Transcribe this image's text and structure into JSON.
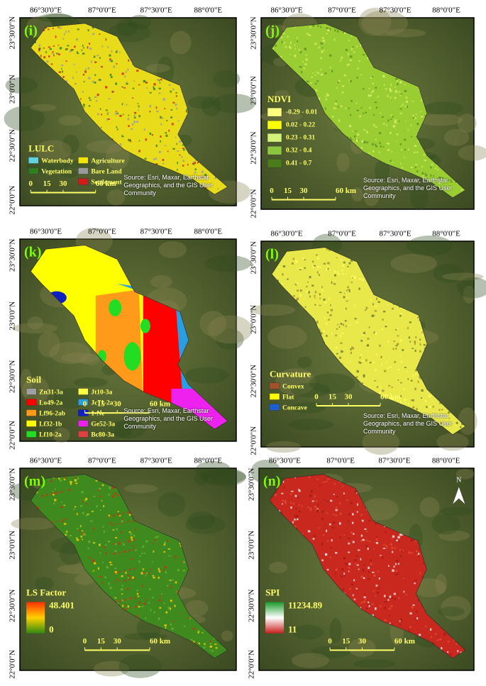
{
  "graticule": {
    "lon": [
      "86°30'0\"E",
      "87°0'0\"E",
      "87°30'0\"E",
      "88°0'0\"E"
    ],
    "lat": [
      "23°30'0\"N",
      "23°0'0\"N",
      "22°30'0\"N",
      "22°0'0\"N"
    ]
  },
  "scale": [
    "0",
    "15",
    "30",
    "60 km"
  ],
  "source": "Source: Esri, Maxar, Earthstar Geographics, and the GIS User Community",
  "north": "N",
  "panels": [
    {
      "label": "(i)",
      "legend_title": "LULC",
      "fill": "#e8dc1a",
      "legend": [
        {
          "name": "Waterbody",
          "color": "#5fd3e0"
        },
        {
          "name": "Vegetation",
          "color": "#2e7d1e"
        },
        {
          "name": "Agriculture",
          "color": "#f2e600"
        },
        {
          "name": "Bare Land",
          "color": "#9a9a9a"
        },
        {
          "name": "Settlement",
          "color": "#d21c1c"
        }
      ]
    },
    {
      "label": "(j)",
      "legend_title": "NDVI",
      "fill": "#9acd32",
      "legend": [
        {
          "name": "-0.29 - 0.01",
          "color": "#ffff80"
        },
        {
          "name": "0.02 - 0.22",
          "color": "#ffff00"
        },
        {
          "name": "0.23 - 0.31",
          "color": "#d4f27a"
        },
        {
          "name": "0.32 - 0.4",
          "color": "#8cc63e"
        },
        {
          "name": "0.41 - 0.7",
          "color": "#4a7d1a"
        }
      ]
    },
    {
      "label": "(k)",
      "legend_title": "Soil",
      "fill": "#ffff00",
      "legend": [
        {
          "name": "Zn31-3a",
          "color": "#a0a0a0"
        },
        {
          "name": "Lo49-2a",
          "color": "#ff0000"
        },
        {
          "name": "Lf96-2ab",
          "color": "#ff9a1a"
        },
        {
          "name": "Lf32-1b",
          "color": "#ffff00"
        },
        {
          "name": "Lf10-2a",
          "color": "#22dd22"
        },
        {
          "name": "Jt10-3a",
          "color": "#ffff40"
        },
        {
          "name": "Jc71-2a",
          "color": "#2a9ee0"
        },
        {
          "name": "1-Ne",
          "color": "#1020c0"
        },
        {
          "name": "Ge52-3a",
          "color": "#ee22ee"
        },
        {
          "name": "Bc80-3a",
          "color": "#e04040"
        }
      ]
    },
    {
      "label": "(l)",
      "legend_title": "Curvature",
      "fill": "#e8e84a",
      "legend": [
        {
          "name": "Convex",
          "color": "#a0522d"
        },
        {
          "name": "Flat",
          "color": "#ffff00"
        },
        {
          "name": "Concave",
          "color": "#1e5fd0"
        }
      ]
    },
    {
      "label": "(m)",
      "legend_title": "LS Factor",
      "fill": "#3e8a1e",
      "ramp_high": 48.401,
      "ramp_low": 0,
      "ramp_colors": [
        "#ff3000",
        "#ffd000",
        "#2e8a10"
      ]
    },
    {
      "label": "(n)",
      "legend_title": "SPI",
      "fill": "#c8281e",
      "ramp_high": 11234.89,
      "ramp_low": 11,
      "ramp_colors": [
        "#1a9a2a",
        "#ffffff",
        "#c81e1e"
      ]
    }
  ]
}
